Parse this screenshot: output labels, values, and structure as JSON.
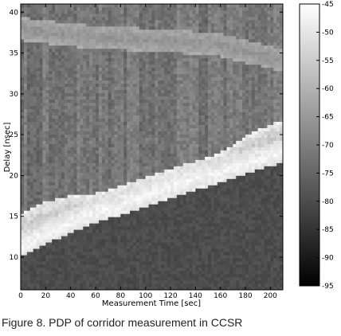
{
  "chart_data": {
    "type": "heatmap",
    "title": "",
    "xlabel": "Measurement Time [sec]",
    "ylabel": "Delay [nsec]",
    "xlim": [
      0,
      210
    ],
    "ylim": [
      6,
      41
    ],
    "xticks": [
      0,
      20,
      40,
      60,
      80,
      100,
      120,
      140,
      160,
      180,
      200
    ],
    "yticks": [
      10,
      15,
      20,
      25,
      30,
      35,
      40
    ],
    "colorbar": {
      "min": -95,
      "max": -45,
      "ticks": [
        -45,
        -50,
        -55,
        -60,
        -65,
        -70,
        -75,
        -80,
        -85,
        -90,
        -95
      ],
      "colormap": "gray"
    },
    "background_level_db": -72,
    "features": [
      {
        "kind": "direct-path ridge",
        "peak_level_db": -47,
        "points": [
          [
            0,
            10.6
          ],
          [
            20,
            12.2
          ],
          [
            40,
            13.6
          ],
          [
            60,
            14.8
          ],
          [
            80,
            15.8
          ],
          [
            100,
            17.0
          ],
          [
            120,
            18.0
          ],
          [
            140,
            19.2
          ],
          [
            160,
            19.8
          ],
          [
            180,
            20.8
          ],
          [
            200,
            21.8
          ],
          [
            210,
            22.2
          ]
        ]
      },
      {
        "kind": "early echo",
        "peak_level_db": -56,
        "points": [
          [
            0,
            13.6
          ],
          [
            20,
            15.0
          ],
          [
            40,
            15.8
          ],
          [
            60,
            16.0
          ],
          [
            80,
            17.0
          ],
          [
            100,
            18.0
          ],
          [
            120,
            19.0
          ],
          [
            140,
            20.0
          ],
          [
            160,
            21.0
          ],
          [
            180,
            23.0
          ],
          [
            200,
            24.5
          ],
          [
            210,
            25.0
          ]
        ]
      },
      {
        "kind": "late reflection band",
        "peak_level_db": -66,
        "points": [
          [
            0,
            38.0
          ],
          [
            40,
            37.2
          ],
          [
            80,
            36.8
          ],
          [
            120,
            36.5
          ],
          [
            160,
            36.0
          ],
          [
            200,
            34.5
          ],
          [
            210,
            34.0
          ]
        ]
      }
    ]
  },
  "caption": "Figure 8.  PDP of corridor measurement in CCSR"
}
